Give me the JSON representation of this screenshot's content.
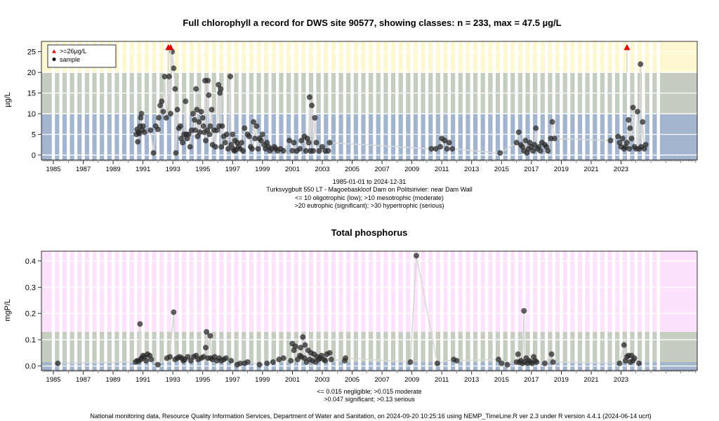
{
  "footer": "National monitoring data, Resource Quality Information Services, Department of Water and Sanitation, on 2024-09-20 10:25:16 using NEMP_TimeLine.R ver 2.3 under R version 4.4.1 (2024-06-14 ucrt)",
  "chart_data": [
    {
      "type": "scatter",
      "title": "Full chlorophyll a record for DWS site 90577, showing classes: n = 233, max = 47.5 µg/L",
      "ylabel": "µg/L",
      "xlim": [
        1984.2,
        2028.1
      ],
      "ylim": [
        -1.2,
        27.5
      ],
      "xticks": [
        "1985",
        "1987",
        "1989",
        "1991",
        "1993",
        "1995",
        "1997",
        "1999",
        "2001",
        "2003",
        "2005",
        "2007",
        "2009",
        "2011",
        "2013",
        "2015",
        "2017",
        "2019",
        "2021",
        "2023"
      ],
      "yticks": [
        "0",
        "5",
        "10",
        "15",
        "20",
        "25"
      ],
      "caption": [
        "1985-01-01 to 2024-12-31",
        "Turksvygbult 550 LT - Magoebaskloof Dam on Politsirivier: near Dam Wall",
        "<= 10 oligotrophic (low); >10 mesotrophic (moderate)",
        ">20 eutrophic (significant); >30 hypertrophic (serious)"
      ],
      "legend": {
        "position": "top-left",
        "entries": [
          ">=26µg/L",
          "sample"
        ]
      },
      "bands": [
        {
          "from": -1.2,
          "to": 10,
          "color": "#a3b4cf"
        },
        {
          "from": 10,
          "to": 20,
          "color": "#c5ccc0"
        },
        {
          "from": 20,
          "to": 27.5,
          "color": "#fdf8cf"
        }
      ],
      "band_lines": [
        0,
        5,
        10,
        15,
        20,
        25
      ],
      "capped": {
        "y": 26,
        "x": [
          1992.7,
          1992.85,
          2023.4
        ],
        "color": "#dd0000"
      },
      "points": [
        [
          1990.55,
          5.0
        ],
        [
          1990.6,
          6.2
        ],
        [
          1990.65,
          3.2
        ],
        [
          1990.7,
          5.5
        ],
        [
          1990.75,
          5.2
        ],
        [
          1990.8,
          7.0
        ],
        [
          1990.85,
          9.0
        ],
        [
          1990.9,
          10.0
        ],
        [
          1990.95,
          6.0
        ],
        [
          1991.0,
          7.0
        ],
        [
          1991.1,
          5.5
        ],
        [
          1991.5,
          6.0
        ],
        [
          1991.7,
          0.5
        ],
        [
          1991.85,
          7.0
        ],
        [
          1992.0,
          6.2
        ],
        [
          1992.05,
          9.0
        ],
        [
          1992.15,
          12.0
        ],
        [
          1992.25,
          13.0
        ],
        [
          1992.35,
          10.5
        ],
        [
          1992.45,
          19.0
        ],
        [
          1992.55,
          9.0
        ],
        [
          1992.75,
          19.0
        ],
        [
          1992.85,
          10.0
        ],
        [
          1992.95,
          25.0
        ],
        [
          1993.05,
          21.0
        ],
        [
          1993.15,
          16.0
        ],
        [
          1993.2,
          0.5
        ],
        [
          1993.3,
          11.0
        ],
        [
          1993.4,
          6.5
        ],
        [
          1993.5,
          7.0
        ],
        [
          1993.55,
          4.0
        ],
        [
          1993.65,
          3.0
        ],
        [
          1993.75,
          5.0
        ],
        [
          1993.85,
          13.0
        ],
        [
          1993.9,
          5.0
        ],
        [
          1993.95,
          4.0
        ],
        [
          1994.05,
          5.0
        ],
        [
          1994.15,
          2.0
        ],
        [
          1994.25,
          6.0
        ],
        [
          1994.35,
          10.0
        ],
        [
          1994.45,
          8.5
        ],
        [
          1994.5,
          6.0
        ],
        [
          1994.55,
          16.0
        ],
        [
          1994.6,
          11.0
        ],
        [
          1994.65,
          4.5
        ],
        [
          1994.75,
          8.0
        ],
        [
          1994.8,
          5.5
        ],
        [
          1994.9,
          10.5
        ],
        [
          1995.0,
          9.0
        ],
        [
          1995.05,
          7.0
        ],
        [
          1995.1,
          5.5
        ],
        [
          1995.15,
          18.0
        ],
        [
          1995.2,
          3.5
        ],
        [
          1995.3,
          6.0
        ],
        [
          1995.35,
          18.0
        ],
        [
          1995.4,
          14.5
        ],
        [
          1995.45,
          5.0
        ],
        [
          1995.5,
          7.0
        ],
        [
          1995.6,
          11.0
        ],
        [
          1995.65,
          2.5
        ],
        [
          1995.75,
          6.0
        ],
        [
          1995.85,
          2.0
        ],
        [
          1995.95,
          6.0
        ],
        [
          1996.05,
          17.0
        ],
        [
          1996.1,
          7.0
        ],
        [
          1996.15,
          15.0
        ],
        [
          1996.2,
          16.0
        ],
        [
          1996.25,
          2.0
        ],
        [
          1996.3,
          7.0
        ],
        [
          1996.4,
          4.5
        ],
        [
          1996.5,
          3.0
        ],
        [
          1996.6,
          5.0
        ],
        [
          1996.7,
          1.5
        ],
        [
          1996.85,
          19.0
        ],
        [
          1996.9,
          2.5
        ],
        [
          1997.0,
          5.0
        ],
        [
          1997.05,
          1.5
        ],
        [
          1997.1,
          1.0
        ],
        [
          1997.15,
          3.5
        ],
        [
          1997.2,
          1.2
        ],
        [
          1997.3,
          3.0
        ],
        [
          1997.4,
          2.0
        ],
        [
          1997.5,
          1.5
        ],
        [
          1997.6,
          3.0
        ],
        [
          1997.7,
          1.0
        ],
        [
          1997.8,
          6.5
        ],
        [
          1998.0,
          5.0
        ],
        [
          1998.1,
          4.5
        ],
        [
          1998.2,
          2.0
        ],
        [
          1998.3,
          1.5
        ],
        [
          1998.4,
          8.0
        ],
        [
          1998.5,
          4.0
        ],
        [
          1998.6,
          7.0
        ],
        [
          1998.7,
          1.5
        ],
        [
          1998.8,
          4.0
        ],
        [
          1998.9,
          3.5
        ],
        [
          1999.0,
          5.0
        ],
        [
          1999.1,
          2.5
        ],
        [
          1999.2,
          1.5
        ],
        [
          1999.3,
          3.0
        ],
        [
          1999.4,
          2.0
        ],
        [
          1999.5,
          1.0
        ],
        [
          1999.6,
          1.5
        ],
        [
          1999.8,
          2.0
        ],
        [
          1999.9,
          1.5
        ],
        [
          2000.0,
          1.0
        ],
        [
          2000.2,
          1.5
        ],
        [
          2000.4,
          1.0
        ],
        [
          2000.8,
          3.5
        ],
        [
          2001.0,
          1.0
        ],
        [
          2001.1,
          3.0
        ],
        [
          2001.3,
          1.0
        ],
        [
          2001.5,
          1.5
        ],
        [
          2001.6,
          3.5
        ],
        [
          2001.8,
          4.5
        ],
        [
          2001.9,
          1.0
        ],
        [
          2002.0,
          4.0
        ],
        [
          2002.1,
          3.0
        ],
        [
          2002.15,
          14.0
        ],
        [
          2002.2,
          1.0
        ],
        [
          2002.3,
          12.0
        ],
        [
          2002.4,
          1.0
        ],
        [
          2002.5,
          9.0
        ],
        [
          2002.6,
          3.0
        ],
        [
          2002.8,
          1.0
        ],
        [
          2003.0,
          2.0
        ],
        [
          2003.2,
          1.0
        ],
        [
          2003.4,
          1.0
        ],
        [
          2003.5,
          3.0
        ],
        [
          2010.3,
          1.5
        ],
        [
          2010.6,
          1.5
        ],
        [
          2010.9,
          2.0
        ],
        [
          2011.0,
          4.0
        ],
        [
          2011.2,
          3.5
        ],
        [
          2011.35,
          1.5
        ],
        [
          2011.5,
          3.0
        ],
        [
          2011.7,
          1.5
        ],
        [
          2014.9,
          0.5
        ],
        [
          2016.0,
          3.0
        ],
        [
          2016.15,
          5.5
        ],
        [
          2016.3,
          2.5
        ],
        [
          2016.4,
          2.0
        ],
        [
          2016.5,
          1.0
        ],
        [
          2016.6,
          3.5
        ],
        [
          2016.7,
          0.5
        ],
        [
          2016.8,
          1.5
        ],
        [
          2016.9,
          3.0
        ],
        [
          2017.0,
          2.0
        ],
        [
          2017.1,
          1.0
        ],
        [
          2017.2,
          2.5
        ],
        [
          2017.3,
          6.5
        ],
        [
          2017.4,
          1.5
        ],
        [
          2017.5,
          2.0
        ],
        [
          2017.6,
          1.0
        ],
        [
          2017.7,
          3.0
        ],
        [
          2017.9,
          2.5
        ],
        [
          2018.0,
          2.0
        ],
        [
          2018.1,
          1.0
        ],
        [
          2018.3,
          4.0
        ],
        [
          2018.4,
          8.0
        ],
        [
          2018.55,
          4.0
        ],
        [
          2022.3,
          3.5
        ],
        [
          2022.8,
          4.5
        ],
        [
          2022.9,
          3.0
        ],
        [
          2023.0,
          2.0
        ],
        [
          2023.1,
          4.0
        ],
        [
          2023.2,
          1.5
        ],
        [
          2023.3,
          2.0
        ],
        [
          2023.4,
          3.0
        ],
        [
          2023.5,
          8.5
        ],
        [
          2023.55,
          1.5
        ],
        [
          2023.6,
          6.5
        ],
        [
          2023.7,
          4.0
        ],
        [
          2023.8,
          11.5
        ],
        [
          2023.9,
          2.0
        ],
        [
          2024.0,
          1.5
        ],
        [
          2024.1,
          10.5
        ],
        [
          2024.2,
          1.5
        ],
        [
          2024.3,
          22.0
        ],
        [
          2024.35,
          2.0
        ],
        [
          2024.45,
          8.0
        ],
        [
          2024.55,
          1.5
        ],
        [
          2024.65,
          2.5
        ]
      ]
    },
    {
      "type": "scatter",
      "title": "Total phosphorus",
      "ylabel": "mgP/L",
      "xlim": [
        1984.2,
        2028.1
      ],
      "ylim": [
        -0.017,
        0.437
      ],
      "xticks": [
        "1985",
        "1987",
        "1989",
        "1991",
        "1993",
        "1995",
        "1997",
        "1999",
        "2001",
        "2003",
        "2005",
        "2007",
        "2009",
        "2011",
        "2013",
        "2015",
        "2017",
        "2019",
        "2021",
        "2023"
      ],
      "yticks": [
        "0.0",
        "0.1",
        "0.2",
        "0.3",
        "0.4"
      ],
      "caption": [
        "<= 0.015 negligible; >0.015 moderate",
        ">0.047 significant; >0.13 serious"
      ],
      "bands": [
        {
          "from": -0.017,
          "to": 0.015,
          "color": "#a3b4cf"
        },
        {
          "from": 0.015,
          "to": 0.13,
          "color": "#c5ccc0"
        },
        {
          "from": 0.13,
          "to": 0.437,
          "color": "#fde2fb"
        }
      ],
      "band_lines": [
        0,
        0.1,
        0.2,
        0.3,
        0.4
      ],
      "points": [
        [
          1985.3,
          0.01
        ],
        [
          1990.5,
          0.015
        ],
        [
          1990.6,
          0.02
        ],
        [
          1990.7,
          0.018
        ],
        [
          1990.8,
          0.16
        ],
        [
          1990.85,
          0.025
        ],
        [
          1990.9,
          0.03
        ],
        [
          1991.0,
          0.04
        ],
        [
          1991.1,
          0.035
        ],
        [
          1991.2,
          0.02
        ],
        [
          1991.3,
          0.045
        ],
        [
          1991.45,
          0.04
        ],
        [
          1991.55,
          0.025
        ],
        [
          1992.0,
          0.005
        ],
        [
          1992.6,
          0.03
        ],
        [
          1992.8,
          0.035
        ],
        [
          1993.05,
          0.205
        ],
        [
          1993.15,
          0.025
        ],
        [
          1993.3,
          0.03
        ],
        [
          1993.45,
          0.035
        ],
        [
          1993.6,
          0.03
        ],
        [
          1993.7,
          0.02
        ],
        [
          1993.8,
          0.025
        ],
        [
          1994.0,
          0.035
        ],
        [
          1994.2,
          0.02
        ],
        [
          1994.4,
          0.035
        ],
        [
          1994.55,
          0.04
        ],
        [
          1994.7,
          0.025
        ],
        [
          1994.9,
          0.03
        ],
        [
          1995.05,
          0.035
        ],
        [
          1995.2,
          0.07
        ],
        [
          1995.25,
          0.13
        ],
        [
          1995.35,
          0.03
        ],
        [
          1995.5,
          0.115
        ],
        [
          1995.55,
          0.03
        ],
        [
          1995.65,
          0.025
        ],
        [
          1995.8,
          0.035
        ],
        [
          1995.95,
          0.02
        ],
        [
          1996.1,
          0.03
        ],
        [
          1996.25,
          0.02
        ],
        [
          1996.4,
          0.025
        ],
        [
          1996.55,
          0.03
        ],
        [
          1996.9,
          0.02
        ],
        [
          1997.3,
          0.005
        ],
        [
          1997.5,
          0.01
        ],
        [
          1997.8,
          0.01
        ],
        [
          1998.0,
          0.015
        ],
        [
          1998.8,
          0.005
        ],
        [
          1999.3,
          0.01
        ],
        [
          1999.7,
          0.015
        ],
        [
          2000.1,
          0.025
        ],
        [
          2000.4,
          0.03
        ],
        [
          2000.9,
          0.02
        ],
        [
          2001.0,
          0.085
        ],
        [
          2001.1,
          0.06
        ],
        [
          2001.2,
          0.075
        ],
        [
          2001.35,
          0.025
        ],
        [
          2001.5,
          0.04
        ],
        [
          2001.55,
          0.07
        ],
        [
          2001.6,
          0.035
        ],
        [
          2001.7,
          0.11
        ],
        [
          2001.8,
          0.03
        ],
        [
          2001.85,
          0.08
        ],
        [
          2001.95,
          0.015
        ],
        [
          2002.05,
          0.06
        ],
        [
          2002.15,
          0.025
        ],
        [
          2002.25,
          0.05
        ],
        [
          2002.35,
          0.02
        ],
        [
          2002.45,
          0.045
        ],
        [
          2002.55,
          0.015
        ],
        [
          2002.65,
          0.035
        ],
        [
          2002.75,
          0.025
        ],
        [
          2002.85,
          0.03
        ],
        [
          2002.95,
          0.04
        ],
        [
          2003.1,
          0.025
        ],
        [
          2003.2,
          0.02
        ],
        [
          2003.3,
          0.045
        ],
        [
          2003.5,
          0.05
        ],
        [
          2003.6,
          0.025
        ],
        [
          2004.5,
          0.02
        ],
        [
          2004.55,
          0.03
        ],
        [
          2008.9,
          0.015
        ],
        [
          2009.3,
          0.42
        ],
        [
          2010.7,
          0.01
        ],
        [
          2011.8,
          0.025
        ],
        [
          2012.0,
          0.02
        ],
        [
          2014.8,
          0.025
        ],
        [
          2015.0,
          0.01
        ],
        [
          2015.4,
          0.005
        ],
        [
          2016.0,
          0.015
        ],
        [
          2016.1,
          0.045
        ],
        [
          2016.2,
          0.015
        ],
        [
          2016.3,
          0.02
        ],
        [
          2016.4,
          0.01
        ],
        [
          2016.5,
          0.21
        ],
        [
          2016.55,
          0.015
        ],
        [
          2016.65,
          0.03
        ],
        [
          2016.75,
          0.01
        ],
        [
          2016.85,
          0.02
        ],
        [
          2016.95,
          0.015
        ],
        [
          2017.05,
          0.01
        ],
        [
          2017.15,
          0.035
        ],
        [
          2017.25,
          0.02
        ],
        [
          2017.35,
          0.015
        ],
        [
          2017.9,
          0.01
        ],
        [
          2018.35,
          0.045
        ],
        [
          2018.45,
          0.015
        ],
        [
          2022.9,
          0.01
        ],
        [
          2023.2,
          0.08
        ],
        [
          2023.3,
          0.02
        ],
        [
          2023.4,
          0.035
        ],
        [
          2023.5,
          0.04
        ],
        [
          2023.6,
          0.015
        ],
        [
          2023.7,
          0.04
        ],
        [
          2023.8,
          0.02
        ],
        [
          2023.9,
          0.03
        ],
        [
          2024.2,
          0.01
        ]
      ]
    }
  ]
}
